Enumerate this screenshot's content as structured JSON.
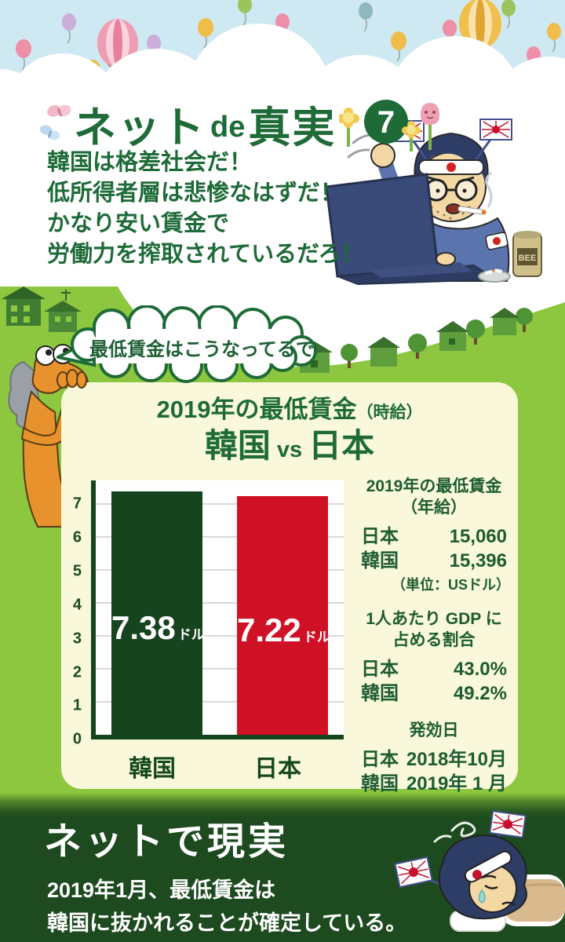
{
  "header": {
    "series_title_part1": "ネット",
    "series_title_part2": "de",
    "series_title_part3": "真実",
    "series_number": "7",
    "claims": [
      "韓国は格差社会だ！",
      "低所得者層は悲惨なはずだ！",
      "かなり安い賃金で",
      "労働力を搾取されているだろ！"
    ]
  },
  "speech_bubble": {
    "text": "最低賃金はこうなってるで"
  },
  "card": {
    "title_main": "2019年の最低賃金",
    "title_sub": "（時給）",
    "vs_left": "韓国",
    "vs_mid": "vs",
    "vs_right": "日本",
    "stats": [
      {
        "heading1": "2019年の最低賃金",
        "heading2": "（年給）",
        "rows": [
          {
            "label": "日本",
            "value": "15,060"
          },
          {
            "label": "韓国",
            "value": "15,396"
          }
        ],
        "note": "（単位：USドル）"
      },
      {
        "heading1": "1人あたり GDP に",
        "heading2": "占める割合",
        "rows": [
          {
            "label": "日本",
            "value": "43.0%"
          },
          {
            "label": "韓国",
            "value": "49.2%"
          }
        ]
      },
      {
        "heading1": "発効日",
        "heading2": "",
        "rows": [
          {
            "label": "日本",
            "value": "2018年10月"
          },
          {
            "label": "韓国",
            "value": "2019年 1 月"
          }
        ]
      }
    ]
  },
  "footer": {
    "title": "ネットで現実",
    "line1": "2019年1月、最低賃金は",
    "line2": "韓国に抜かれることが確定している。"
  },
  "laptop_character": {
    "can_label": "BEE"
  },
  "chart_data": {
    "type": "bar",
    "title": "2019年の最低賃金（時給） 韓国 vs 日本",
    "categories": [
      "韓国",
      "日本"
    ],
    "values": [
      7.38,
      7.22
    ],
    "value_labels": [
      "7.38",
      "7.22"
    ],
    "unit": "ドル",
    "xlabel": "",
    "ylabel": "",
    "ylim": [
      0,
      7.7
    ],
    "yticks": [
      0,
      1,
      2,
      3,
      4,
      5,
      6,
      7
    ],
    "grid": true,
    "legend": false,
    "bar_colors": [
      "#16441f",
      "#cf1126"
    ]
  },
  "colors": {
    "theme_text_green": "#1e6b38",
    "hill_green": "#8dc63f",
    "card_cream": "#f9f8da",
    "korea_bar": "#16441f",
    "japan_bar": "#cf1126",
    "footer_bg": "#1d4a1f",
    "sky_blue": "#cfe9f3"
  }
}
